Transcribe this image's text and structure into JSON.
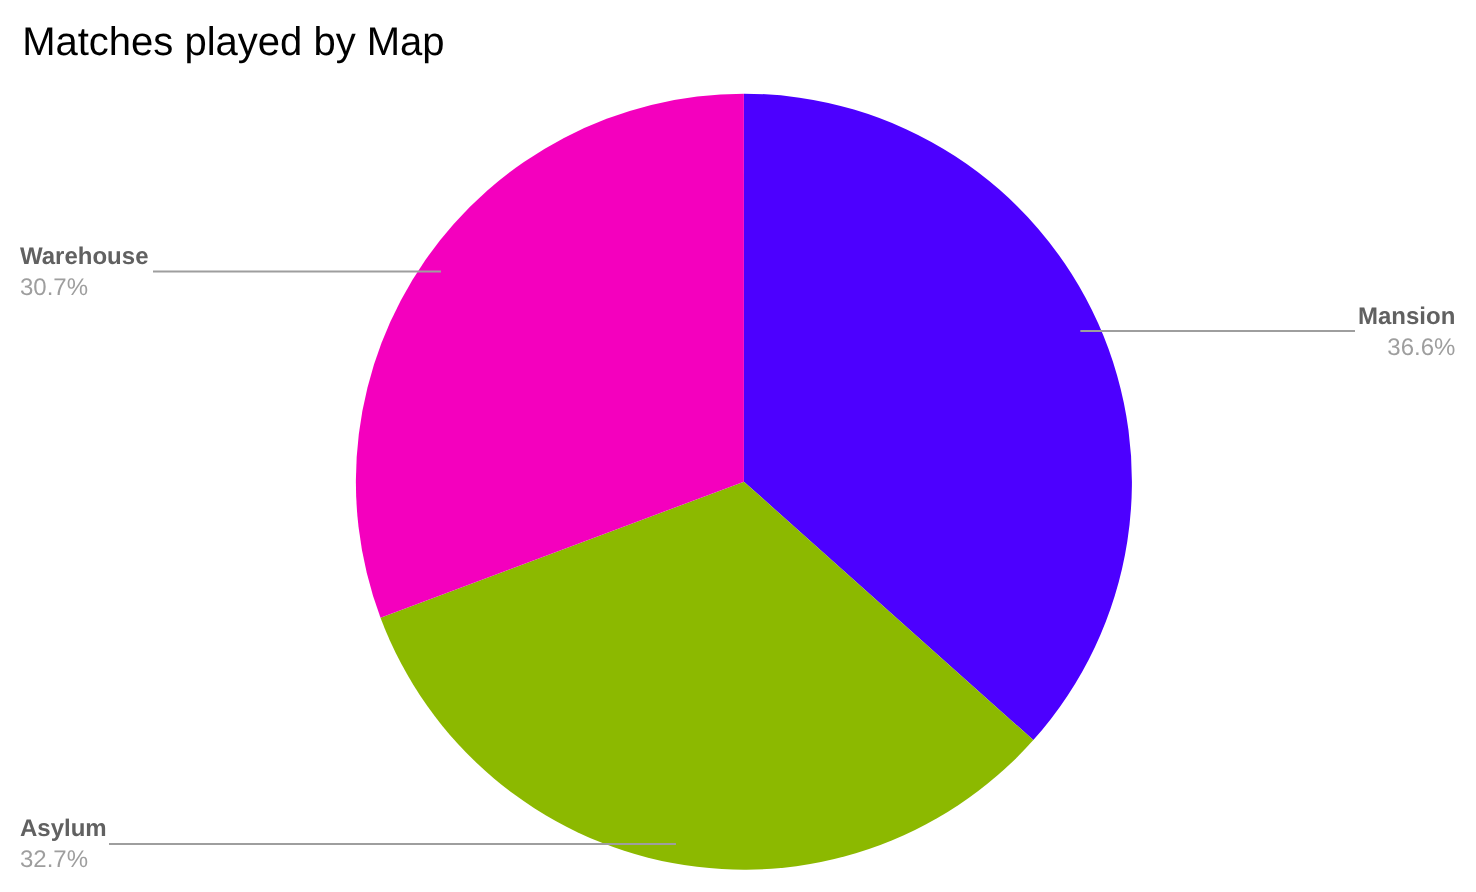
{
  "chart_data": {
    "type": "pie",
    "title": "Matches played by Map",
    "categories": [
      "Mansion",
      "Asylum",
      "Warehouse"
    ],
    "values": [
      36.6,
      32.7,
      30.7
    ],
    "value_labels": [
      "36.6%",
      "32.7%",
      "30.7%"
    ],
    "colors": [
      "#4c00ff",
      "#8cb900",
      "#f400be"
    ],
    "legend": false
  }
}
